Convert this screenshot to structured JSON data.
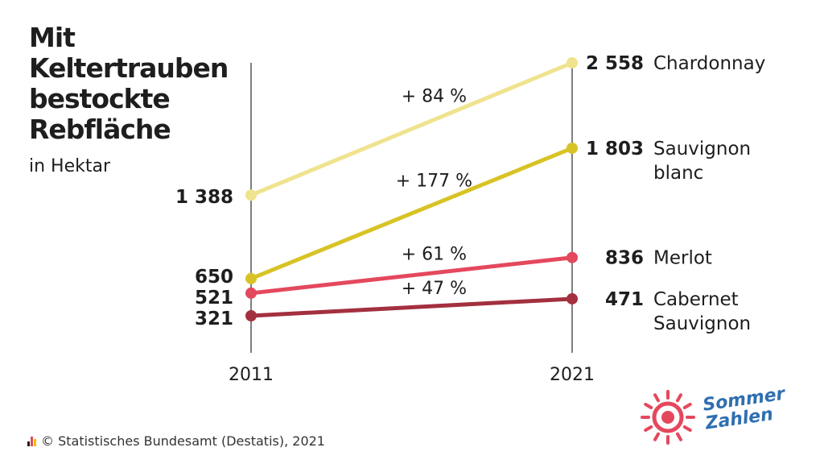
{
  "header": {
    "title": "Mit\nKeltertrauben\nbestockte\nRebfläche",
    "subtitle": "in Hektar"
  },
  "chart_data": {
    "type": "line",
    "title": "Mit Keltertrauben bestockte Rebfläche",
    "subtitle": "in Hektar",
    "x": [
      "2011",
      "2021"
    ],
    "ylim": [
      0,
      2558
    ],
    "grid": false,
    "series": [
      {
        "name": "Chardonnay",
        "label_lines": [
          "Chardonnay"
        ],
        "values": [
          1388,
          2558
        ],
        "start_label": "1 388",
        "end_label": "2 558",
        "change": "+ 84 %",
        "color": "#efe38e"
      },
      {
        "name": "Sauvignon blanc",
        "label_lines": [
          "Sauvignon",
          "blanc"
        ],
        "values": [
          650,
          1803
        ],
        "start_label": "650",
        "end_label": "1 803",
        "change": "+ 177 %",
        "color": "#d8c326"
      },
      {
        "name": "Merlot",
        "label_lines": [
          "Merlot"
        ],
        "values": [
          521,
          836
        ],
        "start_label": "521",
        "end_label": "836",
        "change": "+ 61 %",
        "color": "#e4485d"
      },
      {
        "name": "Cabernet Sauvignon",
        "label_lines": [
          "Cabernet",
          "Sauvignon"
        ],
        "values": [
          321,
          471
        ],
        "start_label": "321",
        "end_label": "471",
        "change": "+ 47 %",
        "color": "#a3303f"
      }
    ]
  },
  "footer": {
    "source": "© Statistisches Bundesamt (Destatis), 2021",
    "logo_text": "Sommer\nZahlen",
    "logo_color": "#e4485d",
    "logo_text_color": "#2f6fb0"
  }
}
